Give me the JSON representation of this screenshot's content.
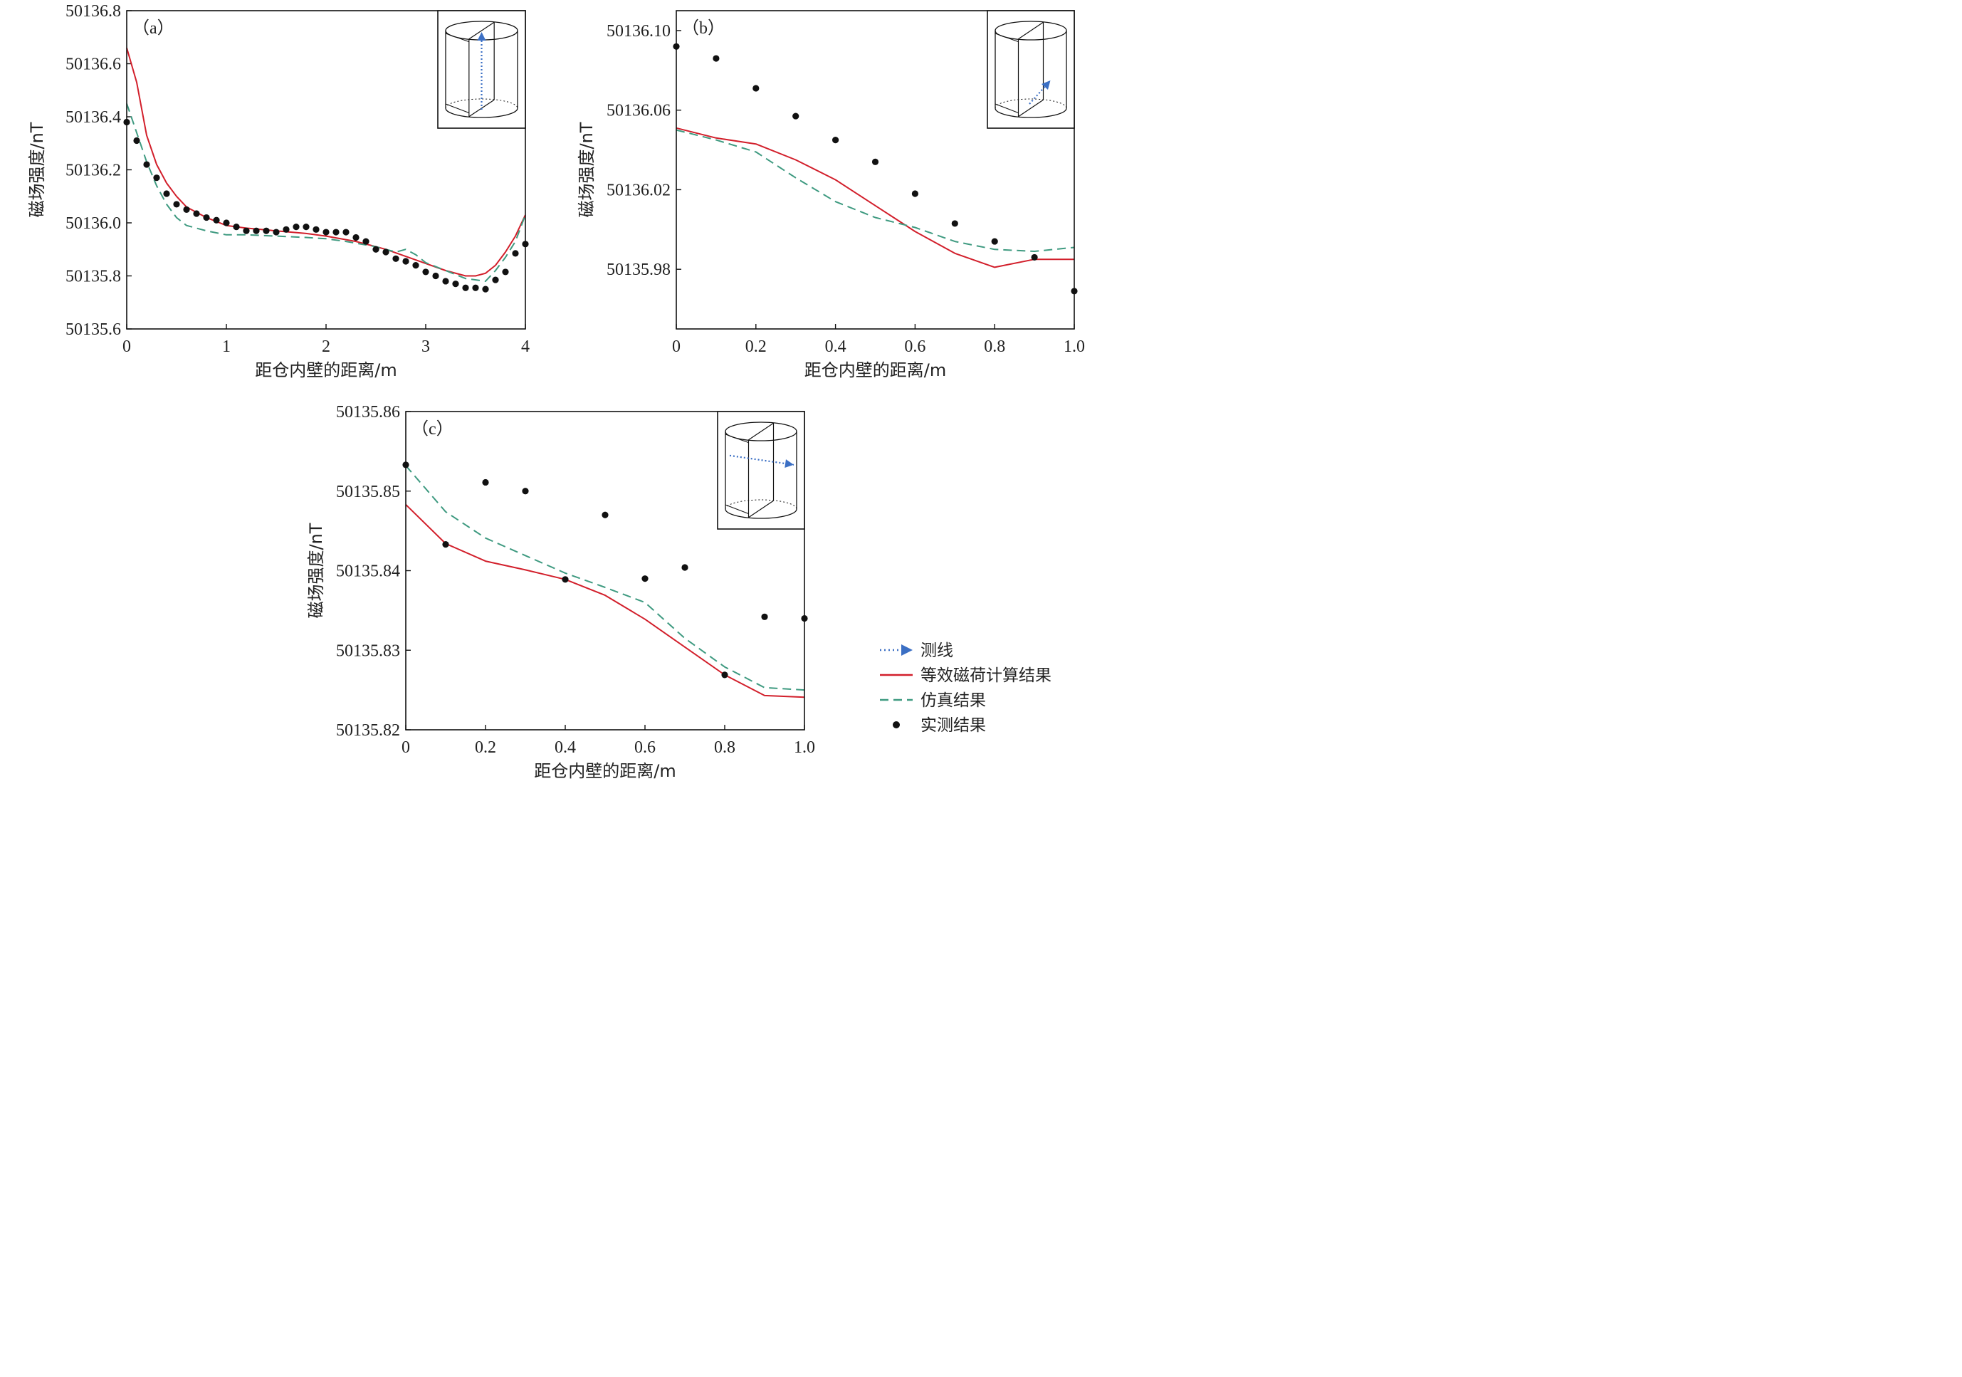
{
  "colors": {
    "equivalent": "#d21f2b",
    "simulation": "#3e9a80",
    "measured": "#111111",
    "survey_line": "#3b6fc4",
    "axis": "#111111"
  },
  "legend": {
    "items": [
      {
        "key": "survey_line",
        "label": "测线",
        "style": "dotted-arrow"
      },
      {
        "key": "equivalent",
        "label": "等效磁荷计算结果",
        "style": "solid"
      },
      {
        "key": "simulation",
        "label": "仿真结果",
        "style": "dashed"
      },
      {
        "key": "measured",
        "label": "实测结果",
        "style": "marker"
      }
    ]
  },
  "chart_data": [
    {
      "type": "line",
      "panel_label": "（a）",
      "xlabel": "距仓内壁的距离/m",
      "ylabel": "磁场强度/nT",
      "xlim": [
        0,
        4
      ],
      "ylim": [
        50135.6,
        50136.8
      ],
      "xticks": [
        0,
        1,
        2,
        3,
        4
      ],
      "xtick_labels": [
        "0",
        "1",
        "2",
        "3",
        "4"
      ],
      "yticks": [
        50135.6,
        50135.8,
        50136.0,
        50136.2,
        50136.4,
        50136.6,
        50136.8
      ],
      "ytick_labels": [
        "50135.6",
        "50135.8",
        "50136.0",
        "50136.2",
        "50136.4",
        "50136.6",
        "50136.8"
      ],
      "inset": "vertical",
      "series": [
        {
          "key": "equivalent",
          "style": "solid",
          "x": [
            0,
            0.1,
            0.2,
            0.3,
            0.4,
            0.5,
            0.6,
            0.8,
            1.0,
            1.2,
            1.5,
            1.8,
            2.0,
            2.3,
            2.6,
            2.9,
            3.2,
            3.4,
            3.5,
            3.6,
            3.7,
            3.8,
            3.9,
            4.0
          ],
          "y": [
            50136.66,
            50136.53,
            50136.33,
            50136.22,
            50136.15,
            50136.1,
            50136.06,
            50136.02,
            50135.99,
            50135.98,
            50135.97,
            50135.96,
            50135.95,
            50135.93,
            50135.9,
            50135.86,
            50135.82,
            50135.8,
            50135.8,
            50135.81,
            50135.84,
            50135.89,
            50135.95,
            50136.03
          ]
        },
        {
          "key": "simulation",
          "style": "dashed",
          "x": [
            0,
            0.1,
            0.2,
            0.3,
            0.4,
            0.5,
            0.6,
            0.8,
            1.0,
            1.2,
            1.5,
            1.8,
            2.0,
            2.2,
            2.5,
            2.7,
            2.8,
            2.9,
            3.0,
            3.2,
            3.4,
            3.6,
            3.7,
            3.8,
            3.9,
            4.0
          ],
          "y": [
            50136.45,
            50136.34,
            50136.23,
            50136.14,
            50136.07,
            50136.02,
            50135.99,
            50135.97,
            50135.955,
            50135.955,
            50135.95,
            50135.945,
            50135.94,
            50135.93,
            50135.91,
            50135.89,
            50135.9,
            50135.88,
            50135.85,
            50135.82,
            50135.79,
            50135.78,
            50135.82,
            50135.87,
            50135.93,
            50136.03
          ]
        },
        {
          "key": "measured",
          "style": "marker",
          "x": [
            0,
            0.1,
            0.2,
            0.3,
            0.4,
            0.5,
            0.6,
            0.7,
            0.8,
            0.9,
            1.0,
            1.1,
            1.2,
            1.3,
            1.4,
            1.5,
            1.6,
            1.7,
            1.8,
            1.9,
            2.0,
            2.1,
            2.2,
            2.3,
            2.4,
            2.5,
            2.6,
            2.7,
            2.8,
            2.9,
            3.0,
            3.1,
            3.2,
            3.3,
            3.4,
            3.5,
            3.6,
            3.7,
            3.8,
            3.9,
            4.0
          ],
          "y": [
            50136.38,
            50136.31,
            50136.22,
            50136.17,
            50136.11,
            50136.07,
            50136.05,
            50136.035,
            50136.02,
            50136.01,
            50136.0,
            50135.985,
            50135.97,
            50135.97,
            50135.97,
            50135.965,
            50135.975,
            50135.985,
            50135.985,
            50135.975,
            50135.965,
            50135.965,
            50135.965,
            50135.945,
            50135.93,
            50135.9,
            50135.89,
            50135.865,
            50135.855,
            50135.84,
            50135.815,
            50135.8,
            50135.78,
            50135.77,
            50135.755,
            50135.755,
            50135.75,
            50135.785,
            50135.815,
            50135.885,
            50135.92
          ]
        }
      ]
    },
    {
      "type": "line",
      "panel_label": "（b）",
      "xlabel": "距仓内壁的距离/m",
      "ylabel": "磁场强度/nT",
      "xlim": [
        0,
        1.0
      ],
      "ylim": [
        50135.95,
        50136.11
      ],
      "xticks": [
        0,
        0.2,
        0.4,
        0.6,
        0.8,
        1.0
      ],
      "xtick_labels": [
        "0",
        "0.2",
        "0.4",
        "0.6",
        "0.8",
        "1.0"
      ],
      "yticks": [
        50135.98,
        50136.02,
        50136.06,
        50136.1
      ],
      "ytick_labels": [
        "50135.98",
        "50136.02",
        "50136.06",
        "50136.10"
      ],
      "inset": "diagonal-bottom",
      "series": [
        {
          "key": "equivalent",
          "style": "solid",
          "x": [
            0,
            0.1,
            0.2,
            0.3,
            0.4,
            0.5,
            0.6,
            0.7,
            0.8,
            0.9,
            1.0
          ],
          "y": [
            50136.051,
            50136.046,
            50136.043,
            50136.035,
            50136.025,
            50136.012,
            50135.999,
            50135.988,
            50135.981,
            50135.985,
            50135.985
          ]
        },
        {
          "key": "simulation",
          "style": "dashed",
          "x": [
            0,
            0.1,
            0.2,
            0.3,
            0.4,
            0.5,
            0.6,
            0.7,
            0.8,
            0.9,
            1.0
          ],
          "y": [
            50136.05,
            50136.045,
            50136.039,
            50136.026,
            50136.014,
            50136.006,
            50136.001,
            50135.994,
            50135.99,
            50135.989,
            50135.991
          ]
        },
        {
          "key": "measured",
          "style": "marker",
          "x": [
            0,
            0.1,
            0.2,
            0.3,
            0.4,
            0.5,
            0.6,
            0.7,
            0.8,
            0.9,
            1.0
          ],
          "y": [
            50136.092,
            50136.086,
            50136.071,
            50136.057,
            50136.045,
            50136.034,
            50136.018,
            50136.003,
            50135.994,
            50135.986,
            50135.969
          ]
        }
      ]
    },
    {
      "type": "line",
      "panel_label": "（c）",
      "xlabel": "距仓内壁的距离/m",
      "ylabel": "磁场强度/nT",
      "xlim": [
        0,
        1.0
      ],
      "ylim": [
        50135.82,
        50135.86
      ],
      "xticks": [
        0,
        0.2,
        0.4,
        0.6,
        0.8,
        1.0
      ],
      "xtick_labels": [
        "0",
        "0.2",
        "0.4",
        "0.6",
        "0.8",
        "1.0"
      ],
      "yticks": [
        50135.82,
        50135.83,
        50135.84,
        50135.85,
        50135.86
      ],
      "ytick_labels": [
        "50135.82",
        "50135.83",
        "50135.84",
        "50135.85",
        "50135.86"
      ],
      "inset": "horizontal-top",
      "series": [
        {
          "key": "equivalent",
          "style": "solid",
          "x": [
            0,
            0.1,
            0.2,
            0.3,
            0.4,
            0.5,
            0.6,
            0.7,
            0.8,
            0.9,
            1.0
          ],
          "y": [
            50135.8483,
            50135.8434,
            50135.8412,
            50135.8401,
            50135.8389,
            50135.8369,
            50135.8339,
            50135.8304,
            50135.8269,
            50135.8243,
            50135.8241
          ]
        },
        {
          "key": "simulation",
          "style": "dashed",
          "x": [
            0,
            0.1,
            0.2,
            0.3,
            0.4,
            0.5,
            0.6,
            0.7,
            0.8,
            0.9,
            1.0
          ],
          "y": [
            50135.8532,
            50135.8474,
            50135.8441,
            50135.8419,
            50135.8397,
            50135.8379,
            50135.836,
            50135.8315,
            50135.8279,
            50135.8253,
            50135.825
          ]
        },
        {
          "key": "measured",
          "style": "marker",
          "x": [
            0,
            0.1,
            0.2,
            0.3,
            0.4,
            0.5,
            0.6,
            0.7,
            0.8,
            0.9,
            1.0
          ],
          "y": [
            50135.8533,
            50135.8433,
            50135.8511,
            50135.85,
            50135.8389,
            50135.847,
            50135.839,
            50135.8404,
            50135.8269,
            50135.8342,
            50135.834
          ]
        }
      ]
    }
  ]
}
